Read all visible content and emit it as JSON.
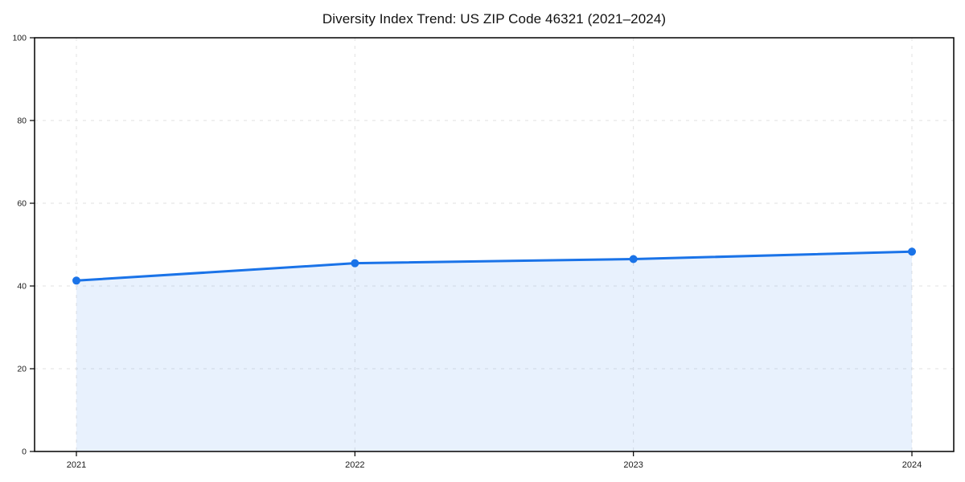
{
  "chart": {
    "title": "Diversity Index Trend: US ZIP Code 46321 (2021–2024)"
  },
  "chart_data": {
    "type": "area",
    "title": "Diversity Index Trend: US ZIP Code 46321 (2021–2024)",
    "categories": [
      "2021",
      "2022",
      "2023",
      "2024"
    ],
    "series": [
      {
        "name": "Diversity Index",
        "values": [
          41.3,
          45.5,
          46.5,
          48.3
        ]
      }
    ],
    "xlabel": "",
    "ylabel": "",
    "ylim": [
      0,
      100
    ],
    "yticks": [
      0,
      20,
      40,
      60,
      80,
      100
    ],
    "grid": true,
    "grid_style": "dashed",
    "legend": false,
    "colors": {
      "line": "#1a73e8",
      "marker": "#1a73e8",
      "fill": "rgba(26, 115, 232, 0.10)",
      "grid": "#e2e2e2",
      "spine": "#000000",
      "tick_text": "#1a1a1a"
    },
    "line_width": 3,
    "marker_radius": 5
  }
}
